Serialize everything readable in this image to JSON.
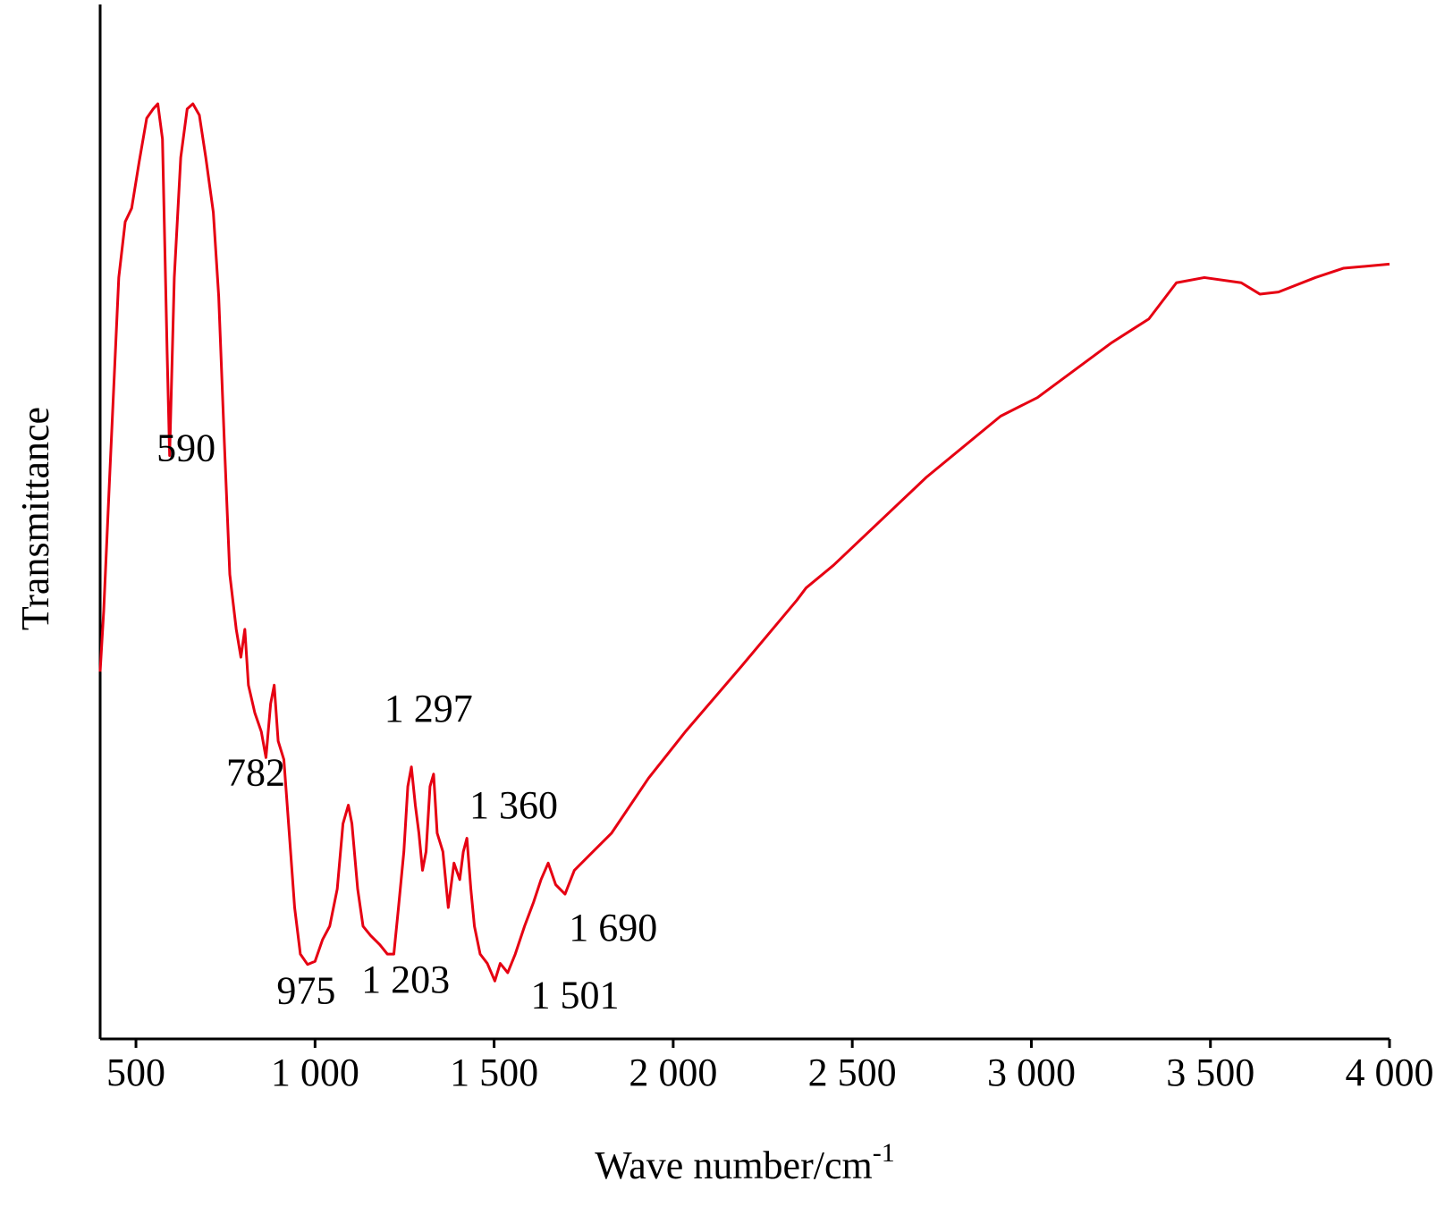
{
  "chart_data": {
    "type": "line",
    "xlabel": "Wave number/cm",
    "xlabel_sup": "-1",
    "ylabel": "Transmittance",
    "xlim": [
      400,
      4000
    ],
    "ylim": [
      0,
      100
    ],
    "xticks": [
      500,
      {
        "value": 1000,
        "label": "1 000"
      },
      {
        "value": 1500,
        "label": "1 500"
      },
      {
        "value": 2000,
        "label": "2 000"
      },
      {
        "value": 2500,
        "label": "2 500"
      },
      {
        "value": 3000,
        "label": "3 000"
      },
      {
        "value": 3500,
        "label": "3 500"
      },
      {
        "value": 4000,
        "label": "4 000"
      }
    ],
    "color": "#e60012",
    "x": [
      400,
      410,
      426,
      452,
      470,
      488,
      509,
      530,
      548,
      561,
      574,
      587,
      594,
      607,
      625,
      643,
      659,
      677,
      695,
      716,
      731,
      747,
      762,
      780,
      793,
      804,
      814,
      832,
      850,
      863,
      876,
      886,
      897,
      913,
      928,
      943,
      959,
      979,
      1000,
      1021,
      1041,
      1062,
      1078,
      1093,
      1103,
      1119,
      1134,
      1155,
      1181,
      1202,
      1220,
      1233,
      1248,
      1259,
      1269,
      1280,
      1290,
      1300,
      1310,
      1321,
      1331,
      1341,
      1357,
      1372,
      1388,
      1404,
      1414,
      1424,
      1435,
      1445,
      1461,
      1481,
      1502,
      1517,
      1538,
      1559,
      1585,
      1610,
      1631,
      1651,
      1672,
      1698,
      1724,
      1776,
      1828,
      1931,
      2034,
      2190,
      2345,
      2371,
      2448,
      2707,
      2914,
      3017,
      3224,
      3328,
      3405,
      3483,
      3586,
      3638,
      3690,
      3793,
      3871,
      4000
    ],
    "values": [
      35.5,
      41.4,
      53.9,
      73.6,
      79,
      80.3,
      84.8,
      89,
      89.9,
      90.4,
      87,
      66.4,
      56.4,
      73.6,
      85.2,
      89.9,
      90.4,
      89.3,
      85.2,
      79.9,
      71.8,
      57.5,
      44.9,
      39.6,
      36.9,
      39.6,
      34.2,
      31.5,
      29.7,
      27.2,
      32.4,
      34.2,
      28.8,
      27,
      19.9,
      12.7,
      8.2,
      7.2,
      7.5,
      9.6,
      10.9,
      14.5,
      20.8,
      22.6,
      20.8,
      14.5,
      10.9,
      10,
      9.1,
      8.2,
      8.2,
      12.7,
      18.1,
      24.4,
      26.3,
      22.6,
      19.9,
      16.3,
      18.1,
      24.4,
      25.6,
      19.9,
      18.1,
      12.7,
      17,
      15.4,
      18.1,
      19.4,
      14.5,
      10.9,
      8.2,
      7.3,
      5.6,
      7.3,
      6.4,
      8.2,
      10.9,
      13.2,
      15.4,
      17,
      14.9,
      14,
      16.3,
      18.1,
      19.9,
      25.2,
      29.7,
      36,
      42.4,
      43.6,
      45.8,
      54.3,
      60.2,
      62,
      67.3,
      69.6,
      73.1,
      73.6,
      73.1,
      72,
      72.2,
      73.6,
      74.5,
      74.9
    ],
    "annotations": [
      {
        "label": "590",
        "x": 590
      },
      {
        "label": "782",
        "x": 782
      },
      {
        "label": "975",
        "x": 975
      },
      {
        "label": "1 203",
        "x": 1203
      },
      {
        "label": "1 297",
        "x": 1297
      },
      {
        "label": "1 360",
        "x": 1360
      },
      {
        "label": "1 501",
        "x": 1501
      },
      {
        "label": "1 690",
        "x": 1690
      }
    ]
  }
}
